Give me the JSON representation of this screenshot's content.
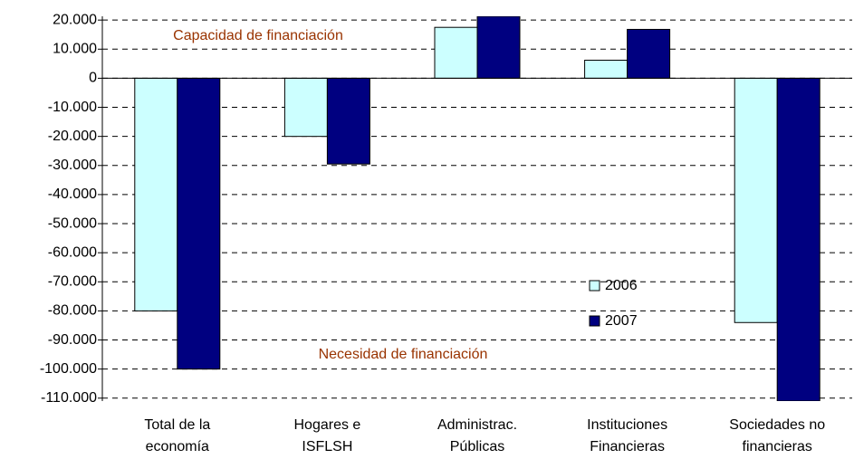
{
  "chart_data": {
    "type": "bar",
    "categories": [
      [
        "Total de la",
        "economía"
      ],
      [
        "Hogares e",
        "ISFLSH"
      ],
      [
        "Administrac.",
        "Públicas"
      ],
      [
        "Instituciones",
        "Financieras"
      ],
      [
        "Sociedades no",
        "financieras"
      ]
    ],
    "series": [
      {
        "name": "2006",
        "color": "#ccffff",
        "values": [
          -80000,
          -20000,
          17500,
          6200,
          -84000
        ]
      },
      {
        "name": "2007",
        "color": "#000080",
        "values": [
          -100000,
          -29500,
          21300,
          16800,
          -111000
        ]
      }
    ],
    "ylim": [
      -111000,
      21300
    ],
    "yticks": [
      {
        "value": 20000,
        "label": "20.000"
      },
      {
        "value": 10000,
        "label": "10.000"
      },
      0,
      {
        "value": -10000,
        "label": "-10.000"
      },
      {
        "value": -20000,
        "label": "-20.000"
      },
      {
        "value": -30000,
        "label": "-30.000"
      },
      {
        "value": -40000,
        "label": "-40.000"
      },
      {
        "value": -50000,
        "label": "-50.000"
      },
      {
        "value": -60000,
        "label": "-60.000"
      },
      {
        "value": -70000,
        "label": "-70.000"
      },
      {
        "value": -80000,
        "label": "-80.000"
      },
      {
        "value": -90000,
        "label": "-90.000"
      },
      {
        "value": -100000,
        "label": "-100.000"
      },
      {
        "value": -110000,
        "label": "-110.000"
      }
    ],
    "grid": true,
    "annotations": [
      "Capacidad de financiación",
      "Necesidad de financiación"
    ]
  }
}
